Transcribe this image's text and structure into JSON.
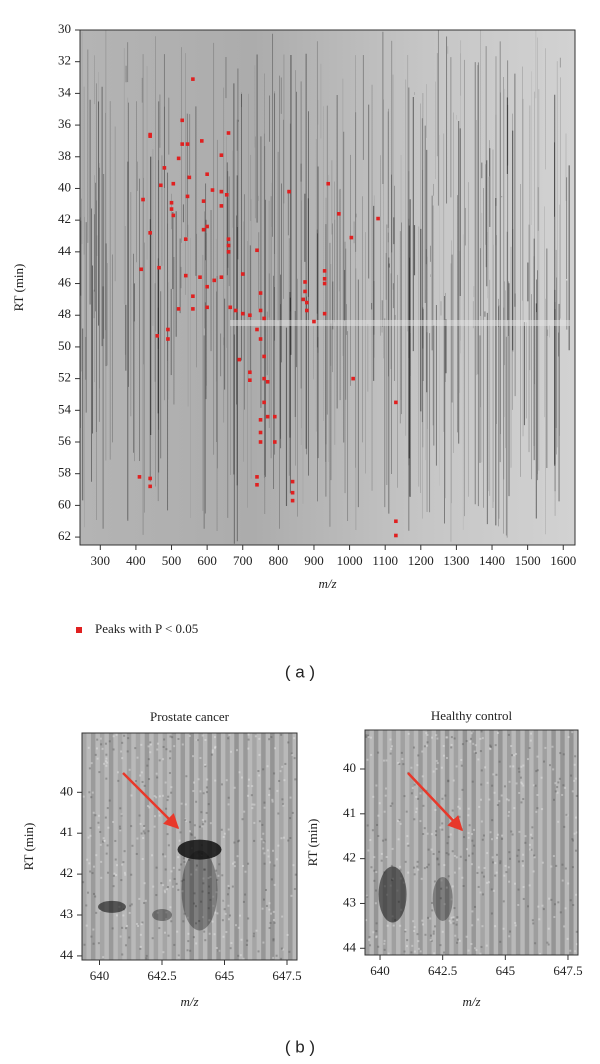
{
  "chart_data": [
    {
      "type": "scatter",
      "x_label": "m/z",
      "y_label": "RT (min)",
      "xlim": [
        243,
        1633
      ],
      "ylim": [
        30,
        62.5
      ],
      "xticks": [
        300,
        400,
        500,
        600,
        700,
        800,
        900,
        1000,
        1100,
        1200,
        1300,
        1400,
        1500,
        1600
      ],
      "yticks": [
        30,
        32,
        34,
        36,
        38,
        40,
        42,
        44,
        46,
        48,
        50,
        52,
        54,
        56,
        58,
        60,
        62
      ],
      "legend": "bottom-left",
      "series": [
        {
          "name": "Peaks with P < 0.05",
          "color": "#e02020",
          "x": [
            560,
            530,
            440,
            440,
            660,
            585,
            530,
            545,
            520,
            640,
            480,
            600,
            550,
            505,
            470,
            420,
            615,
            640,
            655,
            545,
            830,
            940,
            500,
            500,
            505,
            590,
            640,
            970,
            1080,
            440,
            600,
            590,
            660,
            660,
            660,
            540,
            1005,
            740,
            415,
            465,
            580,
            540,
            620,
            640,
            700,
            875,
            875,
            870,
            930,
            930,
            930,
            750,
            600,
            560,
            560,
            520,
            600,
            665,
            700,
            720,
            680,
            750,
            760,
            880,
            880,
            930,
            900,
            490,
            490,
            460,
            740,
            690,
            720,
            760,
            750,
            770,
            760,
            1010,
            720,
            760,
            770,
            750,
            790,
            750,
            750,
            790,
            1130,
            410,
            440,
            440,
            740,
            740,
            840,
            840,
            840,
            1130,
            1130
          ],
          "values": [
            33.1,
            35.7,
            36.6,
            36.7,
            36.5,
            37.0,
            37.2,
            37.2,
            38.1,
            37.9,
            38.7,
            39.1,
            39.3,
            39.7,
            39.8,
            40.7,
            40.1,
            40.2,
            40.4,
            40.5,
            40.2,
            39.7,
            40.9,
            41.3,
            41.7,
            40.8,
            41.1,
            41.6,
            41.9,
            42.8,
            42.4,
            42.6,
            43.2,
            43.6,
            44.0,
            43.2,
            43.1,
            43.9,
            45.1,
            45.0,
            45.6,
            45.5,
            45.8,
            45.6,
            45.4,
            45.9,
            46.5,
            47.0,
            45.2,
            45.7,
            46.0,
            46.6,
            46.2,
            46.8,
            47.6,
            47.6,
            47.5,
            47.5,
            47.9,
            48.0,
            47.7,
            47.7,
            48.2,
            47.2,
            47.7,
            47.9,
            48.4,
            48.9,
            49.5,
            49.3,
            48.9,
            50.8,
            51.6,
            50.6,
            49.5,
            52.2,
            52.0,
            52.0,
            52.1,
            53.5,
            54.4,
            54.6,
            54.4,
            55.4,
            56.0,
            56.0,
            53.5,
            58.2,
            58.3,
            58.8,
            58.2,
            58.7,
            58.5,
            59.2,
            59.7,
            61.0,
            61.9
          ]
        }
      ]
    },
    {
      "type": "image",
      "title": "Prostate cancer",
      "x_label": "m/z",
      "y_label": "RT (min)",
      "xlim": [
        639.3,
        647.9
      ],
      "ylim": [
        38.55,
        44.1
      ],
      "xticks": [
        640,
        642.5,
        645,
        647.5
      ],
      "yticks": [
        40,
        41,
        42,
        43,
        44
      ]
    },
    {
      "type": "image",
      "title": "Healthy control",
      "x_label": "m/z",
      "y_label": "RT (min)",
      "xlim": [
        639.4,
        647.9
      ],
      "ylim": [
        39.13,
        44.15
      ],
      "xticks": [
        640,
        642.5,
        645,
        647.5
      ],
      "yticks": [
        40,
        41,
        42,
        43,
        44
      ]
    }
  ],
  "panel_labels": [
    "( a )",
    "( b )"
  ]
}
